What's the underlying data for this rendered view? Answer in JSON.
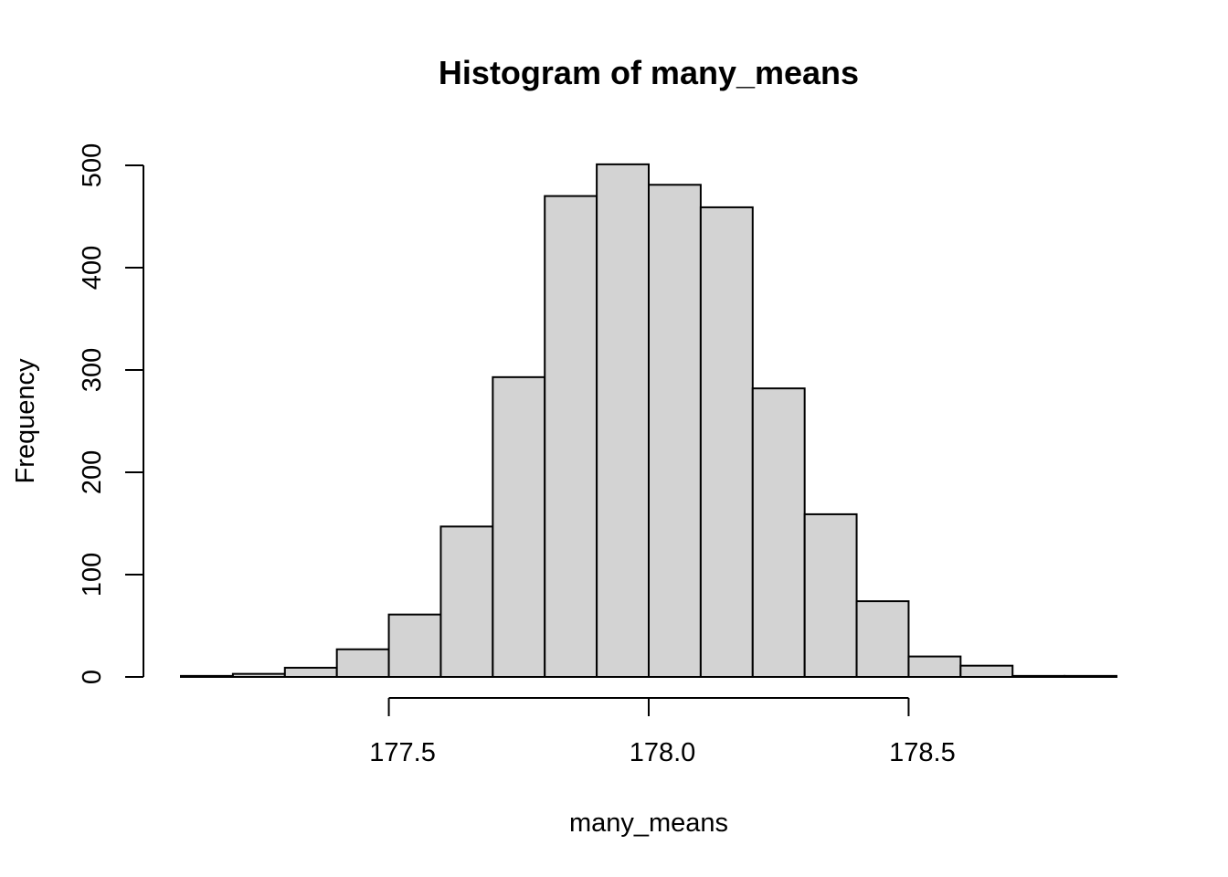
{
  "chart_data": {
    "type": "bar",
    "title": "Histogram of many_means",
    "xlabel": "many_means",
    "ylabel": "Frequency",
    "x_ticks": [
      177.5,
      178.0,
      178.5
    ],
    "x_tick_labels": [
      "177.5",
      "178.0",
      "178.5"
    ],
    "y_ticks": [
      0,
      100,
      200,
      300,
      400,
      500
    ],
    "y_tick_labels": [
      "0",
      "100",
      "200",
      "300",
      "400",
      "500"
    ],
    "xlim": [
      177.1,
      178.9
    ],
    "ylim": [
      0,
      500
    ],
    "bins": [
      {
        "start": 177.1,
        "end": 177.2,
        "count": 1
      },
      {
        "start": 177.2,
        "end": 177.3,
        "count": 3
      },
      {
        "start": 177.3,
        "end": 177.4,
        "count": 9
      },
      {
        "start": 177.4,
        "end": 177.5,
        "count": 27
      },
      {
        "start": 177.5,
        "end": 177.6,
        "count": 61
      },
      {
        "start": 177.6,
        "end": 177.7,
        "count": 147
      },
      {
        "start": 177.7,
        "end": 177.8,
        "count": 293
      },
      {
        "start": 177.8,
        "end": 177.9,
        "count": 470
      },
      {
        "start": 177.9,
        "end": 178.0,
        "count": 501
      },
      {
        "start": 178.0,
        "end": 178.1,
        "count": 481
      },
      {
        "start": 178.1,
        "end": 178.2,
        "count": 459
      },
      {
        "start": 178.2,
        "end": 178.3,
        "count": 282
      },
      {
        "start": 178.3,
        "end": 178.4,
        "count": 159
      },
      {
        "start": 178.4,
        "end": 178.5,
        "count": 74
      },
      {
        "start": 178.5,
        "end": 178.6,
        "count": 20
      },
      {
        "start": 178.6,
        "end": 178.7,
        "count": 11
      },
      {
        "start": 178.7,
        "end": 178.8,
        "count": 1
      },
      {
        "start": 178.8,
        "end": 178.9,
        "count": 1
      }
    ],
    "bar_fill": "#d3d3d3",
    "bar_stroke": "#000000",
    "grid": false,
    "legend": "none"
  }
}
